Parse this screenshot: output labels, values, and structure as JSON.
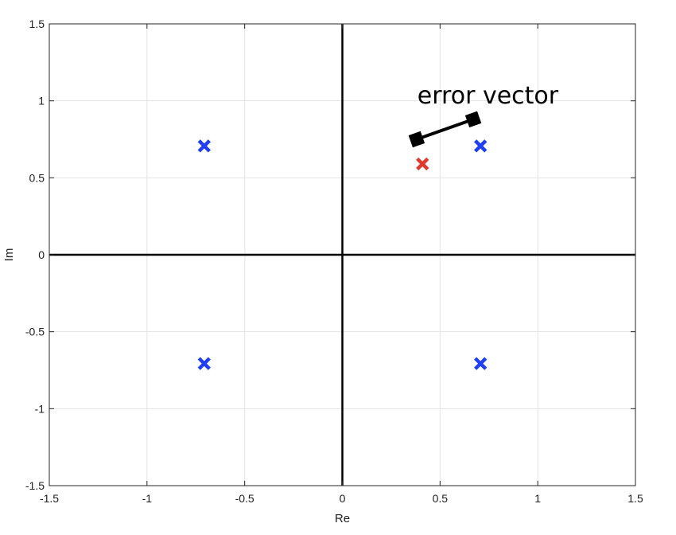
{
  "chart_data": {
    "type": "scatter",
    "title": "",
    "xlabel": "Re",
    "ylabel": "Im",
    "xlim": [
      -1.5,
      1.5
    ],
    "ylim": [
      -1.5,
      1.5
    ],
    "xticks": [
      -1.5,
      -1,
      -0.5,
      0,
      0.5,
      1,
      1.5
    ],
    "yticks": [
      -1.5,
      -1,
      -0.5,
      0,
      0.5,
      1,
      1.5
    ],
    "xtick_labels": [
      "-1.5",
      "-1",
      "-0.5",
      "0",
      "0.5",
      "1",
      "1.5"
    ],
    "ytick_labels": [
      "-1.5",
      "-1",
      "-0.5",
      "0",
      "0.5",
      "1",
      "1.5"
    ],
    "grid": true,
    "legend": "none",
    "axis_lines_at_origin": true,
    "series": [
      {
        "marker": "x",
        "color": "#1f3ff0",
        "points": [
          {
            "x": -0.707,
            "y": 0.707
          },
          {
            "x": 0.707,
            "y": 0.707
          },
          {
            "x": -0.707,
            "y": -0.707
          },
          {
            "x": 0.707,
            "y": -0.707
          }
        ]
      },
      {
        "marker": "x",
        "color": "#e03a2f",
        "points": [
          {
            "x": 0.41,
            "y": 0.59
          }
        ]
      }
    ],
    "annotations": [
      {
        "type": "vector",
        "text": "error vector",
        "color": "#000000",
        "from": {
          "x": 0.38,
          "y": 0.75
        },
        "to": {
          "x": 0.67,
          "y": 0.88
        }
      }
    ]
  }
}
